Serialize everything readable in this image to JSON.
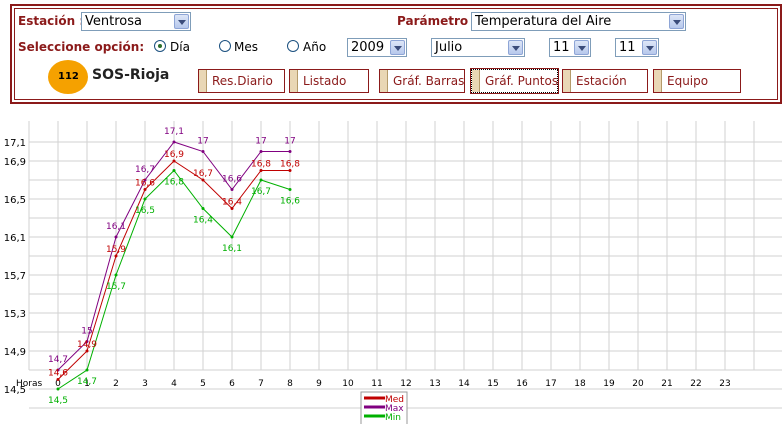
{
  "form": {
    "estacion_label": "Estación :",
    "estacion_value": "Ventrosa",
    "parametro_label": "Parámetro :",
    "parametro_value": "Temperatura del Aire",
    "opcion_label": "Seleccione opción:",
    "radio_dia": "Día",
    "radio_mes": "Mes",
    "radio_ano": "Año",
    "year": "2009",
    "month": "Julio",
    "day1": "11",
    "day2": "11"
  },
  "logo": {
    "number": "112",
    "brand": "SOS-Rioja"
  },
  "tabs": [
    {
      "label": "Res.Diario"
    },
    {
      "label": "Listado"
    },
    {
      "label": "Gráf. Barras"
    },
    {
      "label": "Gráf. Puntos"
    },
    {
      "label": "Estación"
    },
    {
      "label": "Equipo"
    }
  ],
  "colors": {
    "accent": "#8b1a1a",
    "med": "#c00000",
    "max": "#800080",
    "min": "#00b000"
  },
  "chart_data": {
    "type": "line",
    "x": [
      0,
      1,
      2,
      3,
      4,
      5,
      6,
      7,
      8
    ],
    "xlabel": "Horas",
    "xticks": [
      "0",
      "1",
      "2",
      "3",
      "4",
      "5",
      "6",
      "7",
      "8",
      "9",
      "10",
      "11",
      "12",
      "13",
      "14",
      "15",
      "16",
      "17",
      "18",
      "19",
      "20",
      "21",
      "22",
      "23"
    ],
    "yticks": [
      "14,5",
      "14,9",
      "15,3",
      "15,7",
      "16,1",
      "16,5",
      "16,9",
      "17,1"
    ],
    "ylim": [
      14.3,
      17.2
    ],
    "series": [
      {
        "name": "Med",
        "values": [
          14.6,
          14.9,
          15.9,
          16.6,
          16.9,
          16.7,
          16.4,
          16.8,
          16.8
        ],
        "labels": [
          "14,6",
          "14,9",
          "15,9",
          "16,6",
          "16,9",
          "16,7",
          "16,4",
          "16,8",
          "16,8"
        ]
      },
      {
        "name": "Max",
        "values": [
          14.7,
          15.0,
          16.1,
          16.7,
          17.1,
          17.0,
          16.6,
          17.0,
          17.0
        ],
        "labels": [
          "14,7",
          "15",
          "16,1",
          "16,7",
          "17,1",
          "17",
          "16,6",
          "17",
          "17"
        ]
      },
      {
        "name": "Min",
        "values": [
          14.5,
          14.7,
          15.7,
          16.5,
          16.8,
          16.4,
          16.1,
          16.7,
          16.6
        ],
        "labels": [
          "14,5",
          "14,7",
          "15,7",
          "16,5",
          "16,8",
          "16,4",
          "16,1",
          "16,7",
          "16,6"
        ]
      }
    ],
    "legend_position": "bottom-center",
    "grid": true
  }
}
